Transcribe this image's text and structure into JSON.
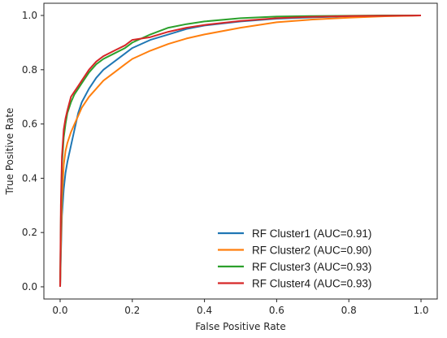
{
  "chart_data": {
    "type": "line",
    "title": "",
    "xlabel": "False Positive Rate",
    "ylabel": "True Positive Rate",
    "xlim": [
      0.0,
      1.0
    ],
    "ylim": [
      0.0,
      1.0
    ],
    "xticks": [
      "0.0",
      "0.2",
      "0.4",
      "0.6",
      "0.8",
      "1.0"
    ],
    "yticks": [
      "0.0",
      "0.2",
      "0.4",
      "0.6",
      "0.8",
      "1.0"
    ],
    "grid": false,
    "legend_position": "bottom-right",
    "series": [
      {
        "name": "RF Cluster1 (AUC=0.91)",
        "color": "#1f77b4",
        "x": [
          0,
          0.002,
          0.005,
          0.01,
          0.015,
          0.02,
          0.03,
          0.04,
          0.05,
          0.06,
          0.08,
          0.1,
          0.12,
          0.15,
          0.18,
          0.2,
          0.25,
          0.3,
          0.35,
          0.4,
          0.5,
          0.6,
          0.7,
          0.8,
          0.9,
          1.0
        ],
        "y": [
          0,
          0.12,
          0.26,
          0.36,
          0.42,
          0.46,
          0.52,
          0.58,
          0.64,
          0.68,
          0.73,
          0.77,
          0.8,
          0.83,
          0.86,
          0.88,
          0.91,
          0.93,
          0.95,
          0.963,
          0.978,
          0.988,
          0.993,
          0.997,
          0.999,
          1.0
        ]
      },
      {
        "name": "RF Cluster2 (AUC=0.90)",
        "color": "#ff7f0e",
        "x": [
          0,
          0.002,
          0.005,
          0.01,
          0.015,
          0.02,
          0.03,
          0.04,
          0.05,
          0.06,
          0.08,
          0.1,
          0.12,
          0.15,
          0.18,
          0.2,
          0.25,
          0.3,
          0.35,
          0.4,
          0.5,
          0.6,
          0.7,
          0.8,
          0.9,
          1.0
        ],
        "y": [
          0,
          0.15,
          0.32,
          0.45,
          0.5,
          0.53,
          0.57,
          0.6,
          0.63,
          0.66,
          0.7,
          0.73,
          0.76,
          0.79,
          0.82,
          0.84,
          0.87,
          0.895,
          0.915,
          0.93,
          0.955,
          0.975,
          0.985,
          0.992,
          0.997,
          1.0
        ]
      },
      {
        "name": "RF Cluster3 (AUC=0.93)",
        "color": "#2ca02c",
        "x": [
          0,
          0.002,
          0.005,
          0.01,
          0.015,
          0.02,
          0.03,
          0.04,
          0.05,
          0.06,
          0.08,
          0.1,
          0.12,
          0.15,
          0.18,
          0.2,
          0.25,
          0.3,
          0.35,
          0.4,
          0.5,
          0.6,
          0.7,
          0.8,
          0.9,
          1.0
        ],
        "y": [
          0,
          0.25,
          0.45,
          0.55,
          0.6,
          0.64,
          0.68,
          0.71,
          0.73,
          0.75,
          0.79,
          0.82,
          0.84,
          0.86,
          0.88,
          0.9,
          0.93,
          0.955,
          0.968,
          0.978,
          0.99,
          0.996,
          0.998,
          0.999,
          1.0,
          1.0
        ]
      },
      {
        "name": "RF Cluster4 (AUC=0.93)",
        "color": "#d62728",
        "x": [
          0,
          0.002,
          0.005,
          0.01,
          0.015,
          0.02,
          0.03,
          0.04,
          0.05,
          0.06,
          0.08,
          0.1,
          0.12,
          0.15,
          0.18,
          0.2,
          0.25,
          0.3,
          0.35,
          0.4,
          0.5,
          0.6,
          0.7,
          0.8,
          0.9,
          1.0
        ],
        "y": [
          0,
          0.3,
          0.48,
          0.58,
          0.62,
          0.65,
          0.7,
          0.72,
          0.74,
          0.76,
          0.8,
          0.83,
          0.85,
          0.87,
          0.89,
          0.91,
          0.92,
          0.94,
          0.955,
          0.965,
          0.98,
          0.99,
          0.995,
          0.998,
          0.999,
          1.0
        ]
      }
    ]
  }
}
